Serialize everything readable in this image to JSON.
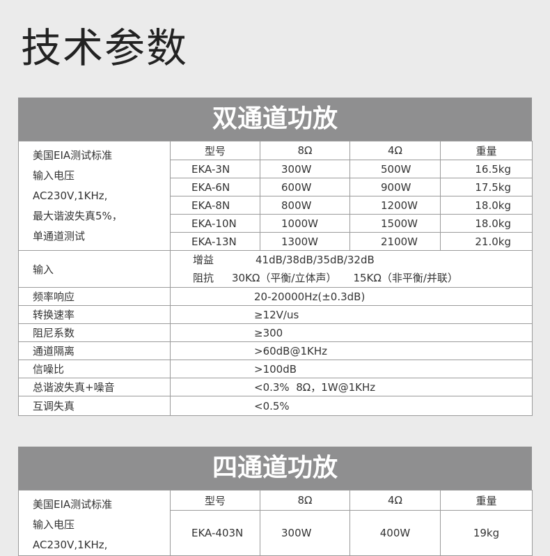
{
  "title": "技术参数",
  "dual": {
    "heading": "双通道功放",
    "spec_lines": [
      "美国EIA测试标准",
      "输入电压",
      "AC230V,1KHz,",
      "最大谐波失真5%，",
      "单通道测试"
    ],
    "columns": [
      "型号",
      "8Ω",
      "4Ω",
      "重量"
    ],
    "models": [
      [
        "EKA-3N",
        "300W",
        "500W",
        "16.5kg"
      ],
      [
        "EKA-6N",
        "600W",
        "900W",
        "17.5kg"
      ],
      [
        "EKA-8N",
        "800W",
        "1200W",
        "18.0kg"
      ],
      [
        "EKA-10N",
        "1000W",
        "1500W",
        "18.0kg"
      ],
      [
        "EKA-13N",
        "1300W",
        "2100W",
        "21.0kg"
      ]
    ],
    "input_label": "输入",
    "gain_label": "增益",
    "gain_value": "41dB/38dB/35dB/32dB",
    "impedance_label": "阻抗",
    "impedance_value1": "30KΩ（平衡/立体声）",
    "impedance_value2": "15KΩ（非平衡/并联）",
    "specs": [
      [
        "频率响应",
        "20-20000Hz(±0.3dB)"
      ],
      [
        "转换速率",
        "≥12V/us"
      ],
      [
        "阻尼系数",
        "≥300"
      ],
      [
        "通道隔离",
        ">60dB@1KHz"
      ],
      [
        "信噪比",
        ">100dB"
      ],
      [
        "总谐波失真+噪音",
        "<0.3%  8Ω，1W@1KHz"
      ],
      [
        "互调失真",
        "<0.5%"
      ]
    ]
  },
  "quad": {
    "heading": "四通道功放",
    "spec_lines": [
      "美国EIA测试标准",
      "输入电压",
      "AC230V,1KHz,"
    ],
    "columns": [
      "型号",
      "8Ω",
      "4Ω",
      "重量"
    ],
    "models": [
      [
        "EKA-403N",
        "300W",
        "400W",
        "19kg"
      ]
    ]
  }
}
